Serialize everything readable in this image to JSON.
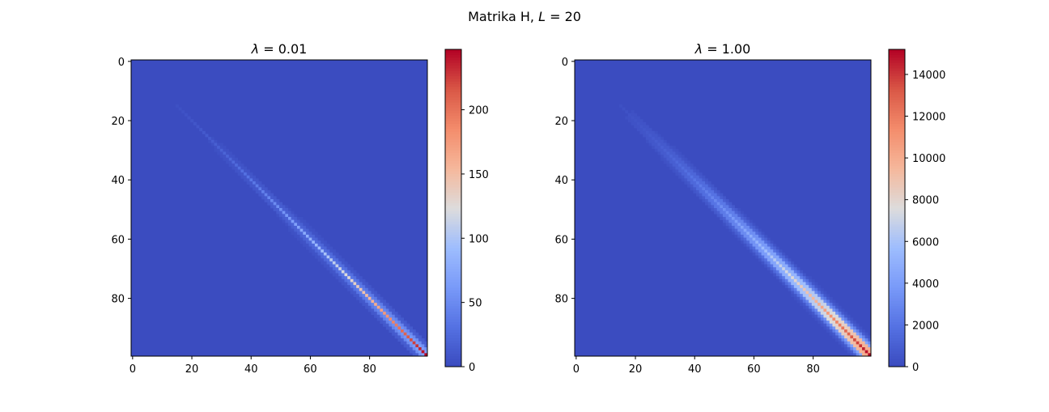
{
  "suptitle": {
    "main": "Matrika H, ",
    "var": "L",
    "rest": " = 20"
  },
  "charts": [
    {
      "type": "heatmap",
      "title_var": "λ",
      "title_rest": " = 0.01",
      "size": 100,
      "max_value": 247,
      "xticks": [
        0,
        20,
        40,
        60,
        80
      ],
      "yticks": [
        0,
        20,
        40,
        60,
        80
      ],
      "colorbar_ticks": [
        0,
        50,
        100,
        150,
        200
      ],
      "colorbar_range": [
        0,
        247
      ],
      "band_halfwidth": 4
    },
    {
      "type": "heatmap",
      "title_var": "λ",
      "title_rest": " = 1.00",
      "size": 100,
      "max_value": 15200,
      "xticks": [
        0,
        20,
        40,
        60,
        80
      ],
      "yticks": [
        0,
        20,
        40,
        60,
        80
      ],
      "colorbar_ticks": [
        0,
        2000,
        4000,
        6000,
        8000,
        10000,
        12000,
        14000
      ],
      "colorbar_range": [
        0,
        15200
      ],
      "band_halfwidth": 6
    }
  ],
  "colormap": "coolwarm",
  "colors": {
    "low": "#3b4cc0",
    "mid": "#dddddd",
    "high": "#b40426"
  }
}
